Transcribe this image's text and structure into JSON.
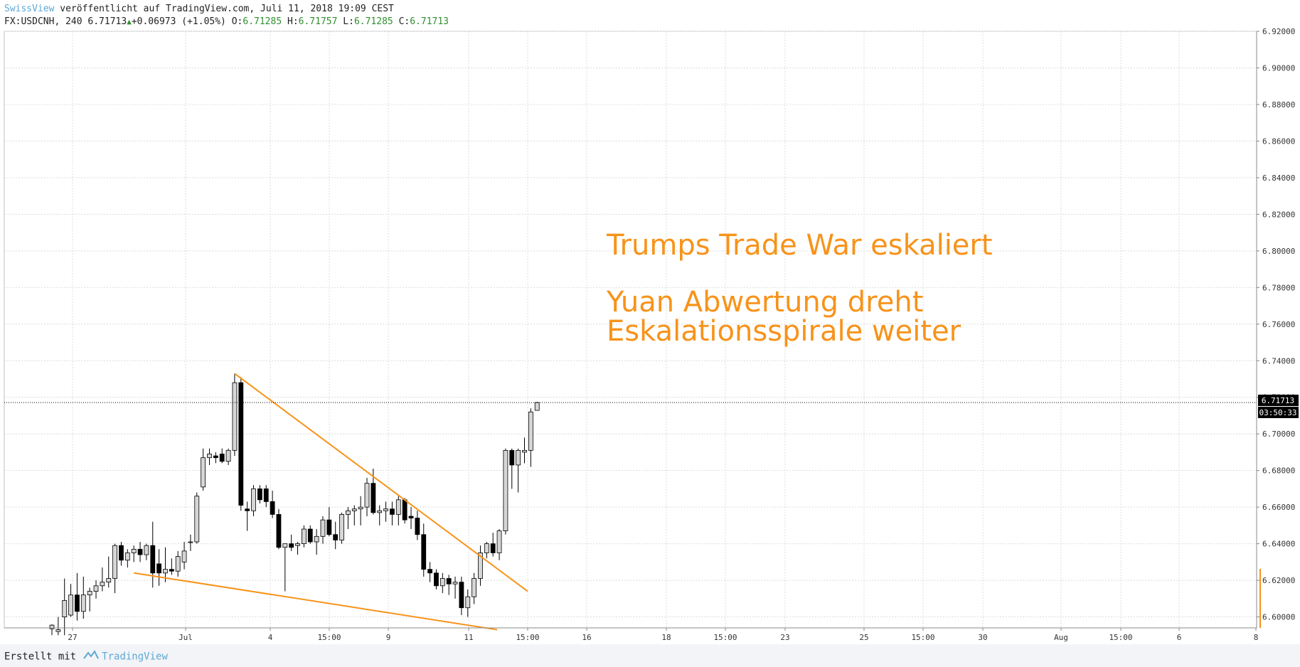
{
  "header": {
    "author": "SwissView",
    "published_text": " veröffentlicht auf TradingView.com, Juli 11, 2018 19:09 CEST",
    "symbol": "FX:USDCNH, 240",
    "last": "6.71713",
    "change": "+0.06973 (+1.05%)",
    "o_label": "O:",
    "o_value": "6.71285",
    "h_label": "H:",
    "h_value": "6.71757",
    "l_label": "L:",
    "l_value": "6.71285",
    "c_label": "C:",
    "c_value": "6.71713"
  },
  "annotations": {
    "line1": "Trumps Trade War eskaliert",
    "line2": "Yuan Abwertung dreht",
    "line3": "Eskalationsspirale weiter"
  },
  "price_label": "6.71713",
  "countdown_label": "03:50:33",
  "footer": {
    "made_with": "Erstellt mit",
    "brand": "TradingView"
  },
  "colors": {
    "trendline": "#f7931a",
    "annotation": "#f7931a",
    "up_candle": "#d6d6d6",
    "down_candle": "#000000",
    "grid": "#dcdcdc"
  },
  "chart_data": {
    "type": "candlestick",
    "symbol": "FX:USDCNH",
    "interval": "240",
    "ylim": [
      6.594,
      6.92
    ],
    "yticks": [
      6.6,
      6.62,
      6.64,
      6.66,
      6.68,
      6.7,
      6.72,
      6.74,
      6.76,
      6.78,
      6.8,
      6.82,
      6.84,
      6.86,
      6.88,
      6.9,
      6.92
    ],
    "x_ticks": [
      "27",
      "Jul",
      "4",
      "15:00",
      "9",
      "11",
      "15:00",
      "16",
      "18",
      "15:00",
      "23",
      "25",
      "15:00",
      "30",
      "Aug",
      "15:00",
      "6",
      "8"
    ],
    "candles": [
      {
        "o": 6.5935,
        "h": 6.596,
        "l": 6.59,
        "c": 6.5955
      },
      {
        "o": 6.592,
        "h": 6.6,
        "l": 6.59,
        "c": 6.593
      },
      {
        "o": 6.6,
        "h": 6.621,
        "l": 6.59,
        "c": 6.609
      },
      {
        "o": 6.601,
        "h": 6.618,
        "l": 6.6,
        "c": 6.612
      },
      {
        "o": 6.612,
        "h": 6.624,
        "l": 6.598,
        "c": 6.603
      },
      {
        "o": 6.603,
        "h": 6.622,
        "l": 6.599,
        "c": 6.612
      },
      {
        "o": 6.612,
        "h": 6.616,
        "l": 6.603,
        "c": 6.614
      },
      {
        "o": 6.614,
        "h": 6.62,
        "l": 6.61,
        "c": 6.617
      },
      {
        "o": 6.617,
        "h": 6.627,
        "l": 6.614,
        "c": 6.619
      },
      {
        "o": 6.619,
        "h": 6.633,
        "l": 6.616,
        "c": 6.621
      },
      {
        "o": 6.621,
        "h": 6.64,
        "l": 6.613,
        "c": 6.639
      },
      {
        "o": 6.639,
        "h": 6.641,
        "l": 6.628,
        "c": 6.631
      },
      {
        "o": 6.631,
        "h": 6.637,
        "l": 6.627,
        "c": 6.635
      },
      {
        "o": 6.635,
        "h": 6.639,
        "l": 6.63,
        "c": 6.637
      },
      {
        "o": 6.637,
        "h": 6.641,
        "l": 6.63,
        "c": 6.634
      },
      {
        "o": 6.634,
        "h": 6.64,
        "l": 6.631,
        "c": 6.639
      },
      {
        "o": 6.639,
        "h": 6.652,
        "l": 6.616,
        "c": 6.624
      },
      {
        "o": 6.629,
        "h": 6.637,
        "l": 6.617,
        "c": 6.624
      },
      {
        "o": 6.624,
        "h": 6.638,
        "l": 6.619,
        "c": 6.626
      },
      {
        "o": 6.626,
        "h": 6.632,
        "l": 6.623,
        "c": 6.625
      },
      {
        "o": 6.625,
        "h": 6.636,
        "l": 6.622,
        "c": 6.633
      },
      {
        "o": 6.63,
        "h": 6.641,
        "l": 6.626,
        "c": 6.636
      },
      {
        "o": 6.641,
        "h": 6.645,
        "l": 6.636,
        "c": 6.641
      },
      {
        "o": 6.641,
        "h": 6.668,
        "l": 6.64,
        "c": 6.666
      },
      {
        "o": 6.671,
        "h": 6.692,
        "l": 6.669,
        "c": 6.687
      },
      {
        "o": 6.687,
        "h": 6.692,
        "l": 6.683,
        "c": 6.689
      },
      {
        "o": 6.688,
        "h": 6.69,
        "l": 6.684,
        "c": 6.687
      },
      {
        "o": 6.689,
        "h": 6.692,
        "l": 6.684,
        "c": 6.685
      },
      {
        "o": 6.685,
        "h": 6.692,
        "l": 6.683,
        "c": 6.691
      },
      {
        "o": 6.691,
        "h": 6.733,
        "l": 6.688,
        "c": 6.728
      },
      {
        "o": 6.728,
        "h": 6.731,
        "l": 6.658,
        "c": 6.661
      },
      {
        "o": 6.659,
        "h": 6.663,
        "l": 6.647,
        "c": 6.658
      },
      {
        "o": 6.658,
        "h": 6.672,
        "l": 6.655,
        "c": 6.67
      },
      {
        "o": 6.67,
        "h": 6.672,
        "l": 6.662,
        "c": 6.664
      },
      {
        "o": 6.67,
        "h": 6.672,
        "l": 6.66,
        "c": 6.663
      },
      {
        "o": 6.663,
        "h": 6.669,
        "l": 6.654,
        "c": 6.656
      },
      {
        "o": 6.656,
        "h": 6.659,
        "l": 6.637,
        "c": 6.638
      },
      {
        "o": 6.638,
        "h": 6.64,
        "l": 6.614,
        "c": 6.64
      },
      {
        "o": 6.64,
        "h": 6.645,
        "l": 6.636,
        "c": 6.638
      },
      {
        "o": 6.639,
        "h": 6.641,
        "l": 6.634,
        "c": 6.64
      },
      {
        "o": 6.64,
        "h": 6.65,
        "l": 6.638,
        "c": 6.648
      },
      {
        "o": 6.648,
        "h": 6.65,
        "l": 6.64,
        "c": 6.641
      },
      {
        "o": 6.641,
        "h": 6.648,
        "l": 6.634,
        "c": 6.644
      },
      {
        "o": 6.644,
        "h": 6.655,
        "l": 6.64,
        "c": 6.653
      },
      {
        "o": 6.653,
        "h": 6.66,
        "l": 6.644,
        "c": 6.645
      },
      {
        "o": 6.645,
        "h": 6.652,
        "l": 6.637,
        "c": 6.642
      },
      {
        "o": 6.642,
        "h": 6.657,
        "l": 6.64,
        "c": 6.656
      },
      {
        "o": 6.656,
        "h": 6.66,
        "l": 6.648,
        "c": 6.658
      },
      {
        "o": 6.658,
        "h": 6.661,
        "l": 6.65,
        "c": 6.659
      },
      {
        "o": 6.659,
        "h": 6.666,
        "l": 6.65,
        "c": 6.66
      },
      {
        "o": 6.66,
        "h": 6.676,
        "l": 6.655,
        "c": 6.673
      },
      {
        "o": 6.673,
        "h": 6.681,
        "l": 6.656,
        "c": 6.657
      },
      {
        "o": 6.657,
        "h": 6.661,
        "l": 6.65,
        "c": 6.658
      },
      {
        "o": 6.658,
        "h": 6.663,
        "l": 6.652,
        "c": 6.659
      },
      {
        "o": 6.659,
        "h": 6.663,
        "l": 6.65,
        "c": 6.656
      },
      {
        "o": 6.656,
        "h": 6.666,
        "l": 6.65,
        "c": 6.664
      },
      {
        "o": 6.664,
        "h": 6.665,
        "l": 6.651,
        "c": 6.653
      },
      {
        "o": 6.655,
        "h": 6.66,
        "l": 6.648,
        "c": 6.654
      },
      {
        "o": 6.654,
        "h": 6.658,
        "l": 6.642,
        "c": 6.645
      },
      {
        "o": 6.645,
        "h": 6.651,
        "l": 6.622,
        "c": 6.626
      },
      {
        "o": 6.626,
        "h": 6.63,
        "l": 6.619,
        "c": 6.624
      },
      {
        "o": 6.624,
        "h": 6.626,
        "l": 6.615,
        "c": 6.617
      },
      {
        "o": 6.617,
        "h": 6.624,
        "l": 6.613,
        "c": 6.621
      },
      {
        "o": 6.621,
        "h": 6.623,
        "l": 6.612,
        "c": 6.618
      },
      {
        "o": 6.618,
        "h": 6.622,
        "l": 6.61,
        "c": 6.619
      },
      {
        "o": 6.619,
        "h": 6.622,
        "l": 6.601,
        "c": 6.605
      },
      {
        "o": 6.605,
        "h": 6.615,
        "l": 6.6,
        "c": 6.611
      },
      {
        "o": 6.611,
        "h": 6.624,
        "l": 6.607,
        "c": 6.621
      },
      {
        "o": 6.621,
        "h": 6.639,
        "l": 6.617,
        "c": 6.635
      },
      {
        "o": 6.635,
        "h": 6.641,
        "l": 6.632,
        "c": 6.64
      },
      {
        "o": 6.64,
        "h": 6.646,
        "l": 6.633,
        "c": 6.635
      },
      {
        "o": 6.635,
        "h": 6.648,
        "l": 6.631,
        "c": 6.647
      },
      {
        "o": 6.647,
        "h": 6.692,
        "l": 6.645,
        "c": 6.691
      },
      {
        "o": 6.691,
        "h": 6.692,
        "l": 6.67,
        "c": 6.683
      },
      {
        "o": 6.683,
        "h": 6.692,
        "l": 6.668,
        "c": 6.691
      },
      {
        "o": 6.69,
        "h": 6.698,
        "l": 6.684,
        "c": 6.691
      },
      {
        "o": 6.691,
        "h": 6.714,
        "l": 6.682,
        "c": 6.712
      },
      {
        "o": 6.71285,
        "h": 6.71757,
        "l": 6.71285,
        "c": 6.71713
      }
    ],
    "trendlines": [
      {
        "name": "upper",
        "x0": 6.733,
        "p0": 6.733,
        "x1": 6.614,
        "p1": 6.614
      },
      {
        "name": "lower",
        "p0": 6.624,
        "p1": 6.593
      }
    ],
    "last_price": 6.71713,
    "countdown": "03:50:33"
  }
}
